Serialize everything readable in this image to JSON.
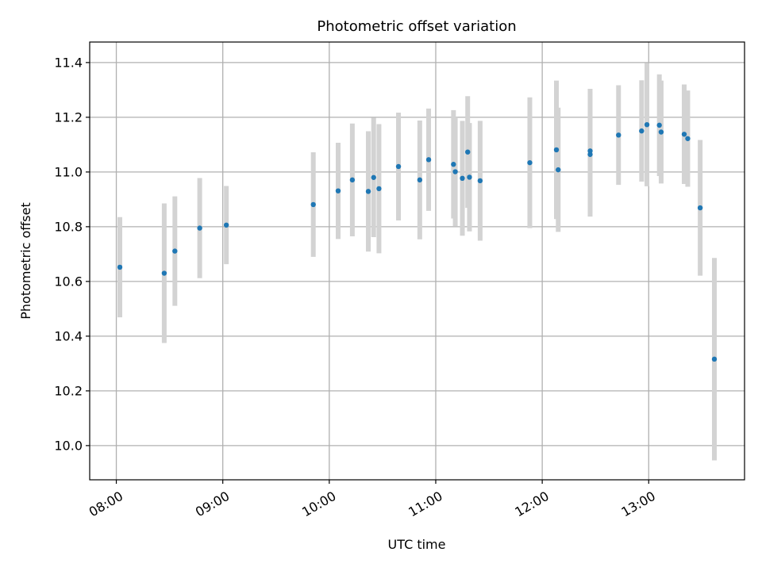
{
  "chart_data": {
    "type": "scatter",
    "title": "Photometric offset variation",
    "xlabel": "UTC time",
    "ylabel": "Photometric offset",
    "x_is_time": true,
    "xlim": [
      "07:45",
      "13:54"
    ],
    "ylim": [
      9.875,
      11.475
    ],
    "x_ticks": [
      "08:00",
      "09:00",
      "10:00",
      "11:00",
      "12:00",
      "13:00"
    ],
    "y_ticks": [
      10.0,
      10.2,
      10.4,
      10.6,
      10.8,
      11.0,
      11.2,
      11.4
    ],
    "y_tick_labels": [
      "10.0",
      "10.2",
      "10.4",
      "10.6",
      "10.8",
      "11.0",
      "11.2",
      "11.4"
    ],
    "grid": true,
    "series": [
      {
        "marker_color": "#1f77b4",
        "errorbar_color": "#d3d3d3",
        "points": [
          {
            "x": "08:02",
            "y": 10.652,
            "yerr": 0.183
          },
          {
            "x": "08:27",
            "y": 10.63,
            "yerr": 0.255
          },
          {
            "x": "08:33",
            "y": 10.711,
            "yerr": 0.2
          },
          {
            "x": "08:47",
            "y": 10.795,
            "yerr": 0.183
          },
          {
            "x": "09:02",
            "y": 10.806,
            "yerr": 0.143
          },
          {
            "x": "09:51",
            "y": 10.881,
            "yerr": 0.191
          },
          {
            "x": "10:05",
            "y": 10.931,
            "yerr": 0.176
          },
          {
            "x": "10:13",
            "y": 10.971,
            "yerr": 0.206
          },
          {
            "x": "10:22",
            "y": 10.929,
            "yerr": 0.22
          },
          {
            "x": "10:25",
            "y": 10.98,
            "yerr": 0.218
          },
          {
            "x": "10:28",
            "y": 10.939,
            "yerr": 0.236
          },
          {
            "x": "10:39",
            "y": 11.02,
            "yerr": 0.197
          },
          {
            "x": "10:51",
            "y": 10.971,
            "yerr": 0.217
          },
          {
            "x": "10:56",
            "y": 11.045,
            "yerr": 0.187
          },
          {
            "x": "11:10",
            "y": 11.028,
            "yerr": 0.198
          },
          {
            "x": "11:11",
            "y": 11.001,
            "yerr": 0.199
          },
          {
            "x": "11:15",
            "y": 10.977,
            "yerr": 0.21
          },
          {
            "x": "11:18",
            "y": 11.073,
            "yerr": 0.204
          },
          {
            "x": "11:19",
            "y": 10.981,
            "yerr": 0.198
          },
          {
            "x": "11:25",
            "y": 10.968,
            "yerr": 0.219
          },
          {
            "x": "11:53",
            "y": 11.034,
            "yerr": 0.239
          },
          {
            "x": "12:08",
            "y": 11.081,
            "yerr": 0.253
          },
          {
            "x": "12:09",
            "y": 11.008,
            "yerr": 0.227
          },
          {
            "x": "12:27",
            "y": 11.064,
            "yerr": 0.227
          },
          {
            "x": "12:27",
            "y": 11.077,
            "yerr": 0.227
          },
          {
            "x": "12:43",
            "y": 11.135,
            "yerr": 0.182
          },
          {
            "x": "12:56",
            "y": 11.15,
            "yerr": 0.185
          },
          {
            "x": "12:59",
            "y": 11.173,
            "yerr": 0.225
          },
          {
            "x": "13:06",
            "y": 11.171,
            "yerr": 0.186
          },
          {
            "x": "13:07",
            "y": 11.146,
            "yerr": 0.188
          },
          {
            "x": "13:20",
            "y": 11.138,
            "yerr": 0.182
          },
          {
            "x": "13:22",
            "y": 11.122,
            "yerr": 0.176
          },
          {
            "x": "13:29",
            "y": 10.869,
            "yerr": 0.248
          },
          {
            "x": "13:37",
            "y": 10.316,
            "yerr": 0.37
          }
        ]
      }
    ]
  }
}
